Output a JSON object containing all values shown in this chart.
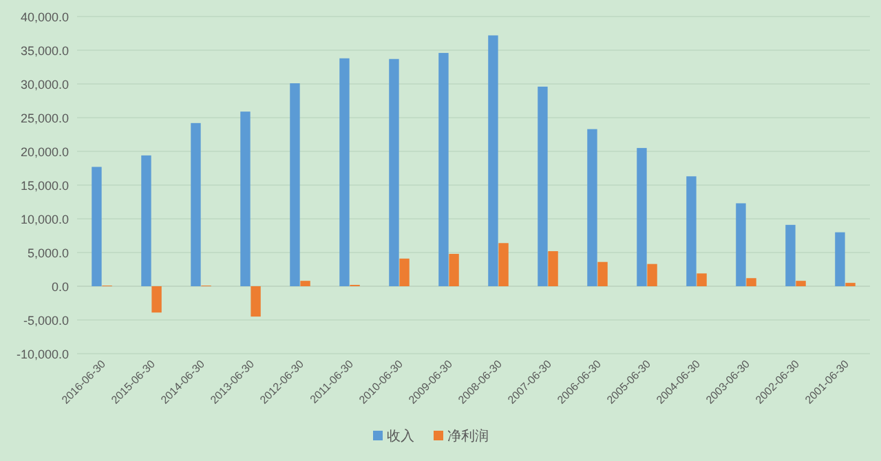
{
  "chart_data": {
    "type": "bar",
    "categories": [
      "2016-06-30",
      "2015-06-30",
      "2014-06-30",
      "2013-06-30",
      "2012-06-30",
      "2011-06-30",
      "2010-06-30",
      "2009-06-30",
      "2008-06-30",
      "2007-06-30",
      "2006-06-30",
      "2005-06-30",
      "2004-06-30",
      "2003-06-30",
      "2002-06-30",
      "2001-06-30"
    ],
    "series": [
      {
        "name": "收入",
        "color": "#5b9bd5",
        "values": [
          17700,
          19400,
          24200,
          25900,
          30100,
          33800,
          33700,
          34600,
          37200,
          29600,
          23300,
          20500,
          16300,
          12300,
          9100,
          8000
        ]
      },
      {
        "name": "净利润",
        "color": "#ed7d31",
        "values": [
          100,
          -3900,
          100,
          -4500,
          800,
          200,
          4100,
          4800,
          6400,
          5200,
          3600,
          3300,
          1900,
          1200,
          800,
          500
        ]
      }
    ],
    "ylim": [
      -10000,
      40000
    ],
    "yticks": [
      {
        "value": -10000,
        "label": "-10,000.0"
      },
      {
        "value": -5000,
        "label": "-5,000.0"
      },
      {
        "value": 0,
        "label": "0.0"
      },
      {
        "value": 5000,
        "label": "5,000.0"
      },
      {
        "value": 10000,
        "label": "10,000.0"
      },
      {
        "value": 15000,
        "label": "15,000.0"
      },
      {
        "value": 20000,
        "label": "20,000.0"
      },
      {
        "value": 25000,
        "label": "25,000.0"
      },
      {
        "value": 30000,
        "label": "30,000.0"
      },
      {
        "value": 35000,
        "label": "35,000.0"
      },
      {
        "value": 40000,
        "label": "40,000.0"
      }
    ],
    "grid": "y",
    "legend": "bottom"
  }
}
